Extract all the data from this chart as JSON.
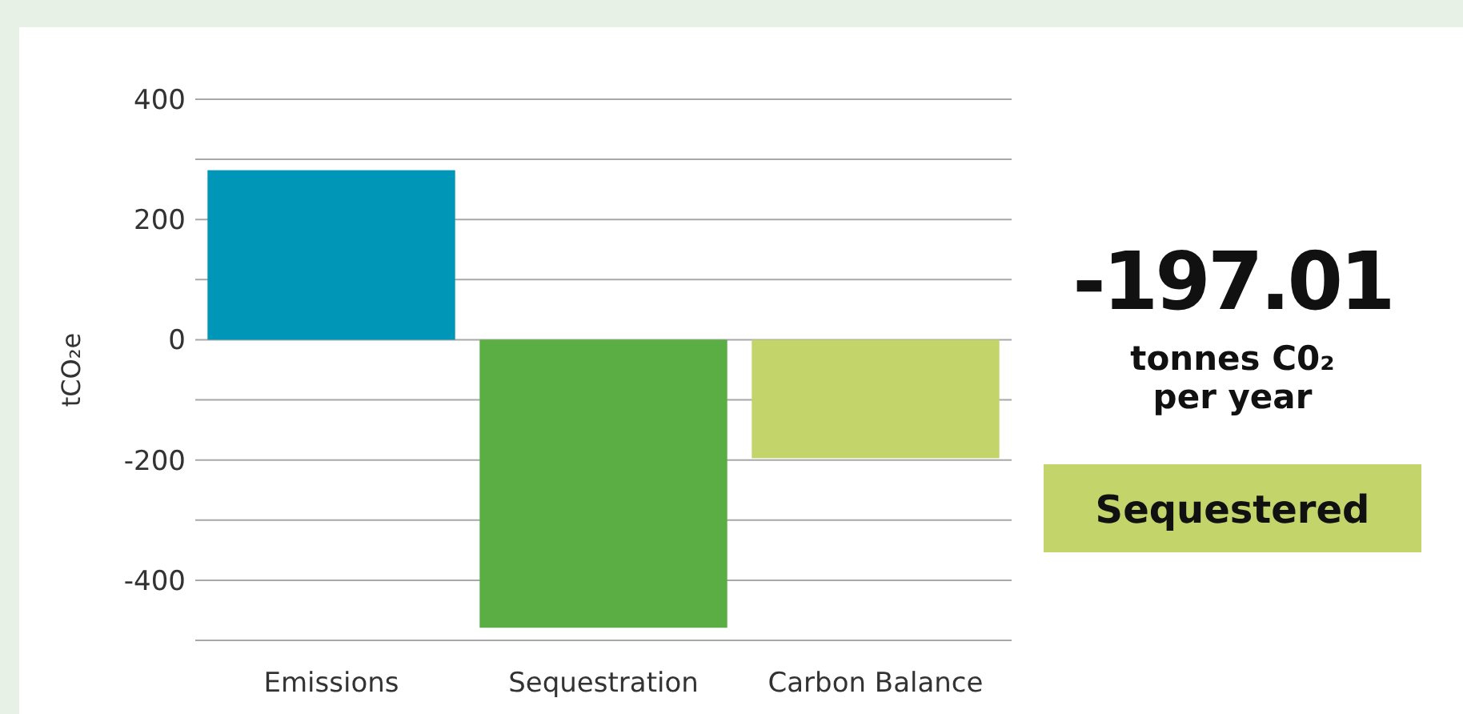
{
  "chart_data": {
    "type": "bar",
    "categories": [
      "Emissions",
      "Sequestration",
      "Carbon Balance"
    ],
    "values": [
      282,
      -479,
      -197
    ],
    "colors": [
      "#0096b8",
      "#5aae44",
      "#c2d46a"
    ],
    "ylabel": "tCO₂e",
    "ylim": [
      -500,
      400
    ],
    "yticks": [
      {
        "value": -500,
        "label": null
      },
      -400,
      {
        "value": -300,
        "label": null
      },
      -200,
      {
        "value": -100,
        "label": null
      },
      0,
      {
        "value": 100,
        "label": null
      },
      200,
      {
        "value": 300,
        "label": null
      },
      400
    ],
    "grid": "y",
    "annotations": [
      "-197.01",
      "tonnes C0₂ per year",
      "Sequestered"
    ]
  }
}
